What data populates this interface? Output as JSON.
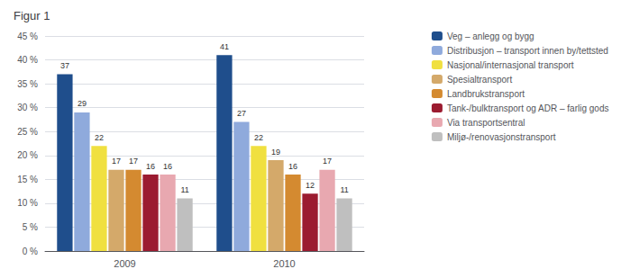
{
  "chart_data": {
    "type": "bar",
    "title": "Figur 1",
    "categories": [
      "2009",
      "2010"
    ],
    "series": [
      {
        "name": "Veg – anlegg og bygg",
        "color": "#1f4e8c",
        "values": [
          37,
          41
        ]
      },
      {
        "name": "Distribusjon – transport innen by/tettsted",
        "color": "#8faadc",
        "values": [
          29,
          27
        ]
      },
      {
        "name": "Nasjonal/internasjonal transport",
        "color": "#f0e040",
        "values": [
          22,
          22
        ]
      },
      {
        "name": "Spesialtransport",
        "color": "#d4a96a",
        "values": [
          17,
          19
        ]
      },
      {
        "name": "Landbrukstransport",
        "color": "#d48a30",
        "values": [
          17,
          16
        ]
      },
      {
        "name": "Tank-/bulktransport og ADR – farlig gods",
        "color": "#9b1b30",
        "values": [
          16,
          12
        ]
      },
      {
        "name": "Via transportsentral",
        "color": "#e8a8b0",
        "values": [
          16,
          17
        ]
      },
      {
        "name": "Miljø-/renovasjonstransport",
        "color": "#bfbfbf",
        "values": [
          11,
          11
        ]
      }
    ],
    "ylim": [
      0,
      45
    ],
    "yticks": [
      {
        "value": 0,
        "label": "0 %"
      },
      {
        "value": 5,
        "label": "5 %"
      },
      {
        "value": 10,
        "label": "10 %"
      },
      {
        "value": 15,
        "label": "15 %"
      },
      {
        "value": 20,
        "label": "20 %"
      },
      {
        "value": 25,
        "label": "25 %"
      },
      {
        "value": 30,
        "label": "30 %"
      },
      {
        "value": 35,
        "label": "35 %"
      },
      {
        "value": 40,
        "label": "40 %"
      },
      {
        "value": 45,
        "label": "45 %"
      }
    ],
    "grid": true,
    "legend": "right",
    "data_labels": true
  }
}
